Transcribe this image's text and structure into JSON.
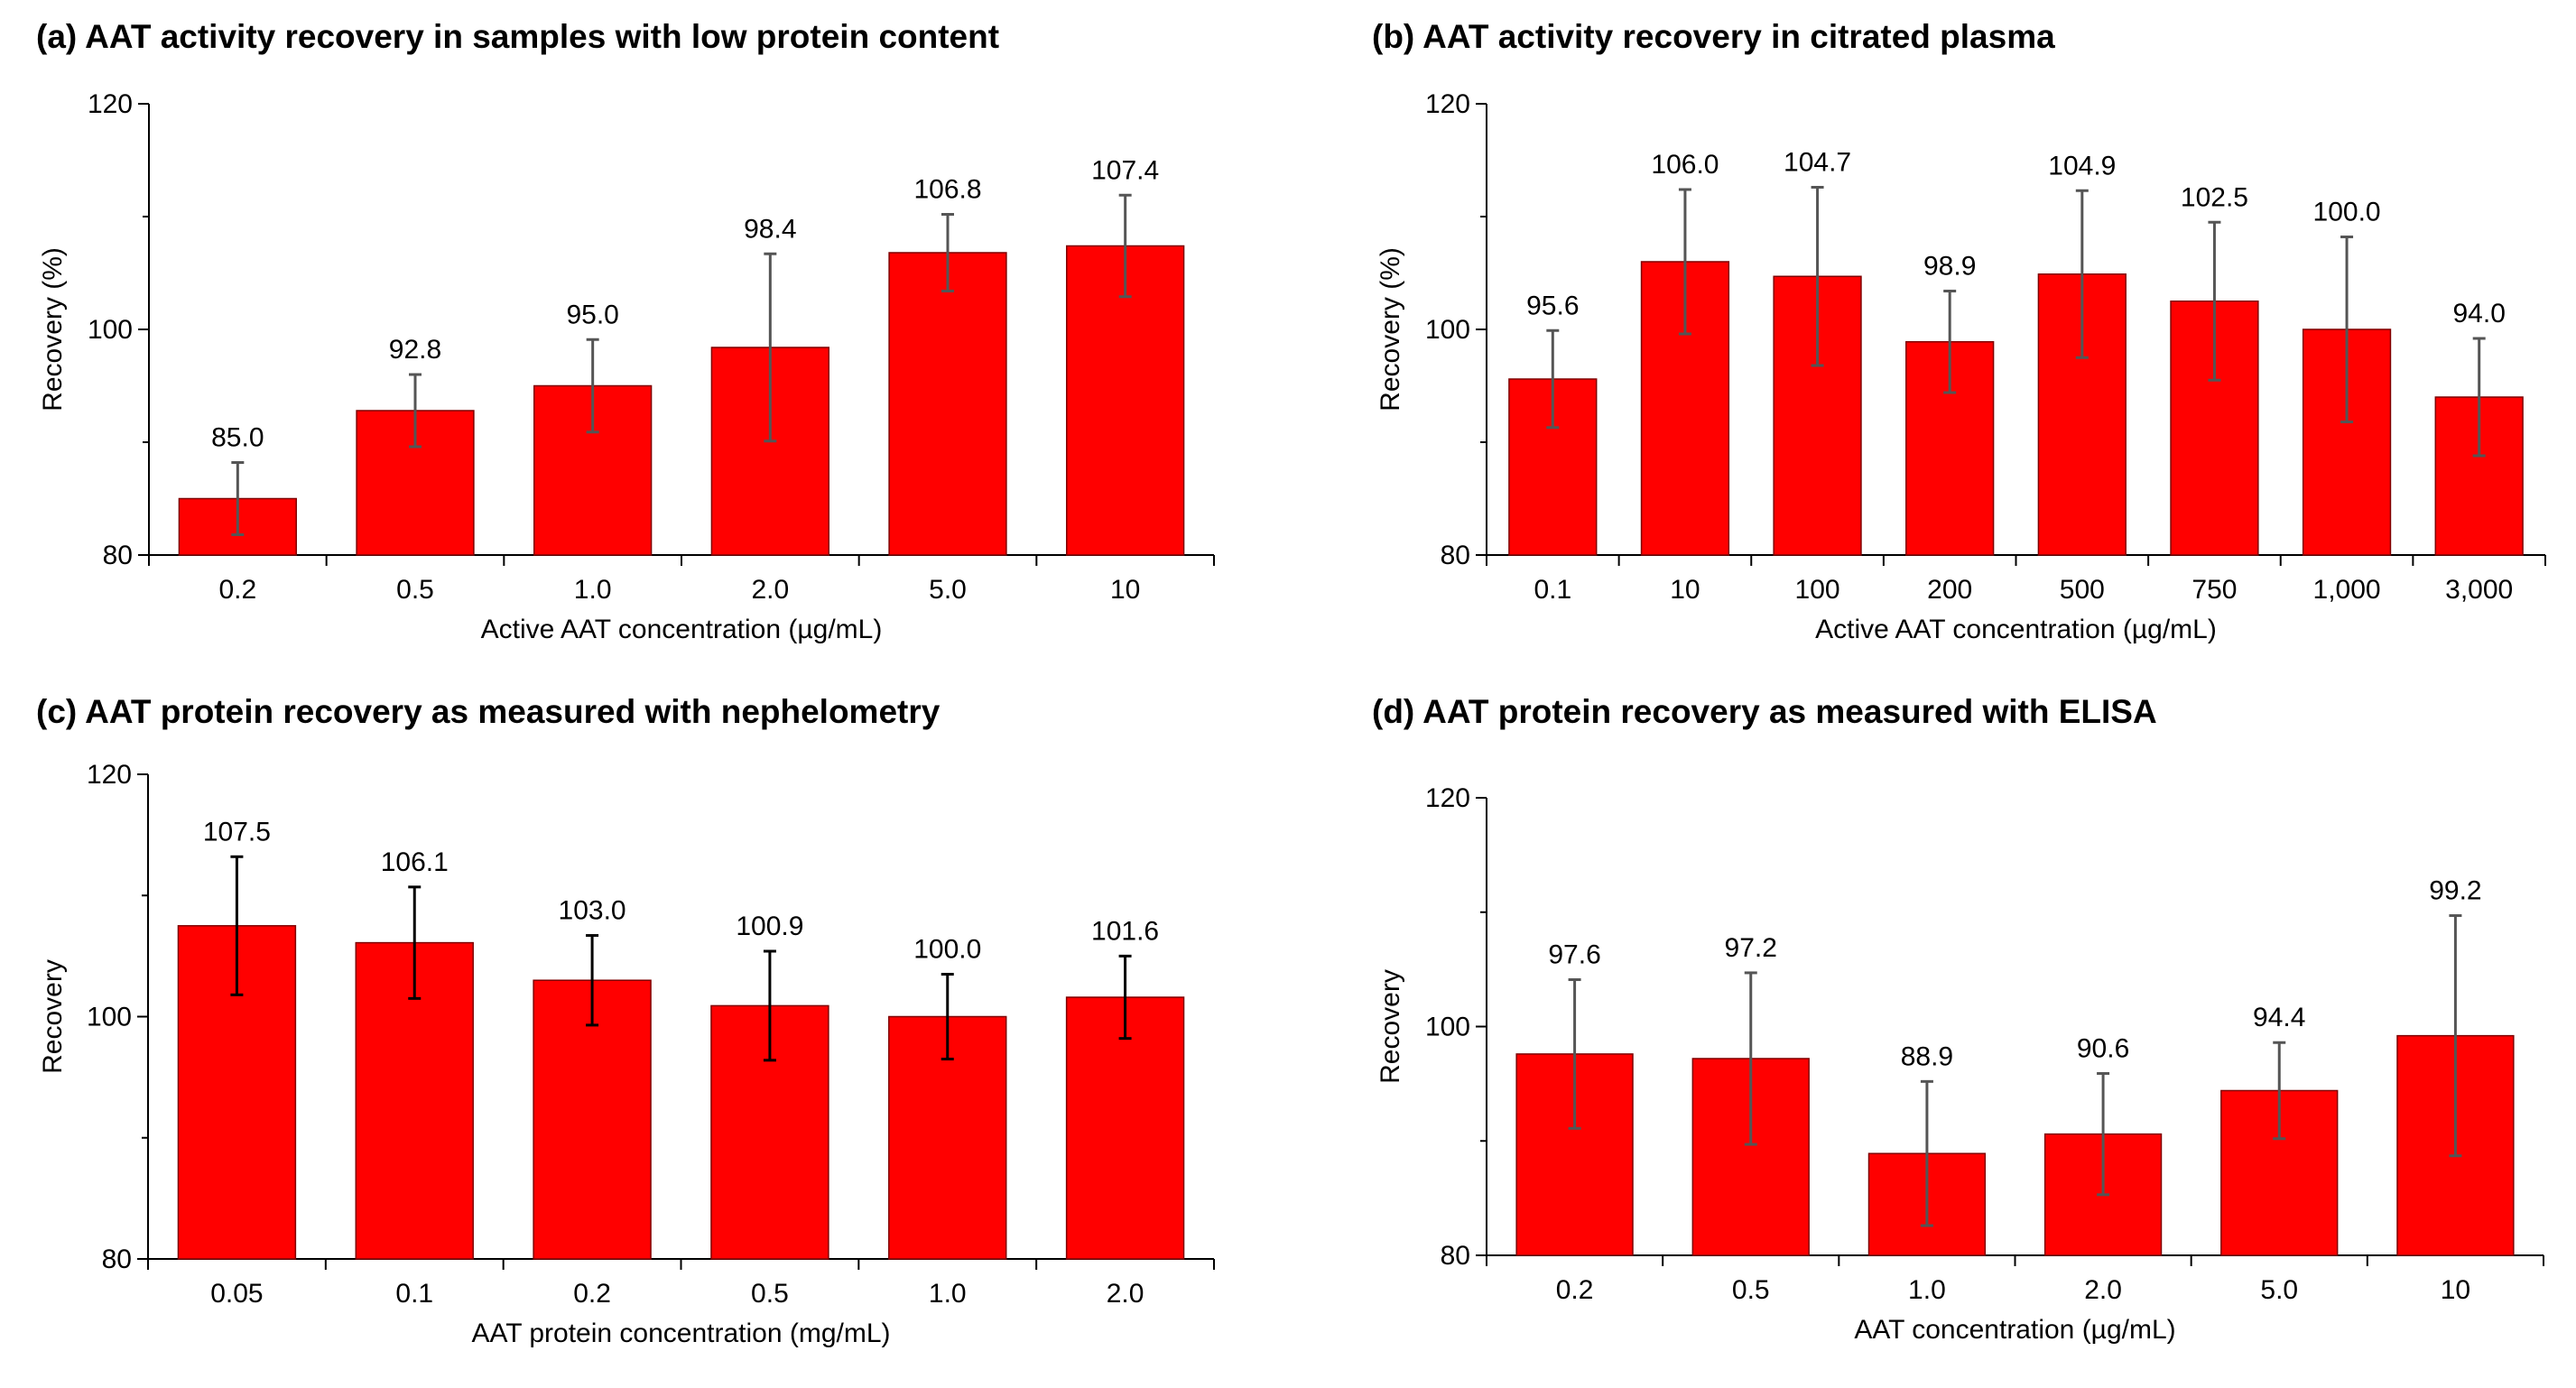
{
  "colors": {
    "bar": "#ff0000",
    "bar_stroke": "#7f0000",
    "axis": "#000000"
  },
  "chart_data": [
    {
      "type": "bar",
      "title": "(a) AAT activity recovery in samples with low protein content",
      "xlabel": "Active AAT concentration (µg/mL)",
      "ylabel": "Recovery (%)",
      "ylim": [
        80,
        120
      ],
      "yticks": [
        "80",
        "100",
        "120"
      ],
      "categories": [
        "0.2",
        "0.5",
        "1.0",
        "2.0",
        "5.0",
        "10"
      ],
      "values": [
        85.0,
        92.8,
        95.0,
        98.4,
        106.8,
        107.4
      ],
      "value_labels": [
        "85.0",
        "92.8",
        "95.0",
        "98.4",
        "106.8",
        "107.4"
      ],
      "errors": [
        3.2,
        3.2,
        4.1,
        8.3,
        3.4,
        4.5
      ],
      "error_color": "#555555",
      "grid": false
    },
    {
      "type": "bar",
      "title": "(b) AAT activity recovery in citrated plasma",
      "xlabel": "Active AAT concentration (µg/mL)",
      "ylabel": "Recovery (%)",
      "ylim": [
        80,
        120
      ],
      "yticks": [
        "80",
        "100",
        "120"
      ],
      "categories": [
        "0.1",
        "10",
        "100",
        "200",
        "500",
        "750",
        "1,000",
        "3,000"
      ],
      "values": [
        95.6,
        106.0,
        104.7,
        98.9,
        104.9,
        102.5,
        100.0,
        94.0
      ],
      "value_labels": [
        "95.6",
        "106.0",
        "104.7",
        "98.9",
        "104.9",
        "102.5",
        "100.0",
        "94.0"
      ],
      "errors": [
        4.3,
        6.4,
        7.9,
        4.5,
        7.4,
        7.0,
        8.2,
        5.2
      ],
      "error_color": "#555555",
      "grid": false
    },
    {
      "type": "bar",
      "title": "(c) AAT protein recovery as measured with nephelometry",
      "xlabel": "AAT protein concentration (mg/mL)",
      "ylabel": "Recovery",
      "ylim": [
        80,
        120
      ],
      "yticks": [
        "80",
        "100",
        "120"
      ],
      "categories": [
        "0.05",
        "0.1",
        "0.2",
        "0.5",
        "1.0",
        "2.0"
      ],
      "values": [
        107.5,
        106.1,
        103.0,
        100.9,
        100.0,
        101.6
      ],
      "value_labels": [
        "107.5",
        "106.1",
        "103.0",
        "100.9",
        "100.0",
        "101.6"
      ],
      "errors": [
        5.7,
        4.6,
        3.7,
        4.5,
        3.5,
        3.4
      ],
      "error_color": "#000000",
      "grid": false
    },
    {
      "type": "bar",
      "title": "(d) AAT protein recovery as measured with ELISA",
      "xlabel": "AAT concentration (µg/mL)",
      "ylabel": "Recovery",
      "ylim": [
        80,
        120
      ],
      "yticks": [
        "80",
        "100",
        "120"
      ],
      "categories": [
        "0.2",
        "0.5",
        "1.0",
        "2.0",
        "5.0",
        "10"
      ],
      "values": [
        97.6,
        97.2,
        88.9,
        90.6,
        94.4,
        99.2
      ],
      "value_labels": [
        "97.6",
        "97.2",
        "88.9",
        "90.6",
        "94.4",
        "99.2"
      ],
      "errors": [
        6.5,
        7.5,
        6.3,
        5.3,
        4.2,
        10.5
      ],
      "error_color": "#555555",
      "grid": false
    }
  ]
}
